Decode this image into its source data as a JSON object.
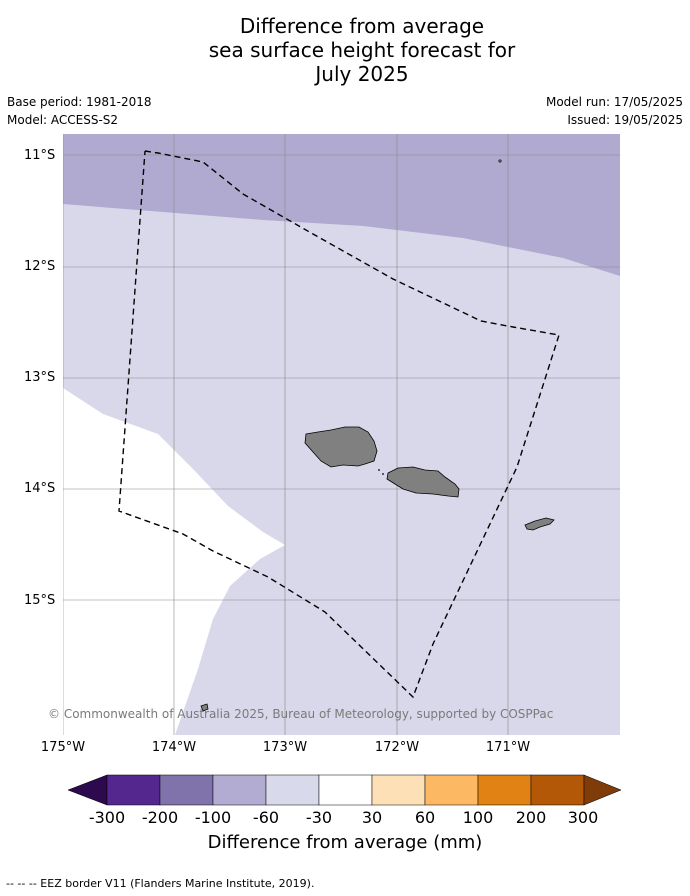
{
  "title": {
    "line1": "Difference from average",
    "line2": "sea surface height forecast for",
    "line3": "July 2025"
  },
  "meta": {
    "base_period": "Base period: 1981-2018",
    "model": "Model: ACCESS-S2",
    "model_run": "Model run: 17/05/2025",
    "issued": "Issued: 19/05/2025"
  },
  "map": {
    "lat_labels": [
      "11°S",
      "12°S",
      "13°S",
      "14°S",
      "15°S"
    ],
    "lon_labels": [
      "175°W",
      "174°W",
      "173°W",
      "172°W",
      "171°W"
    ],
    "copyright": "© Commonwealth of Australia 2025, Bureau of Meteorology, supported by COSPPac",
    "colors": {
      "band_neg_100_60": "#b0aad0",
      "band_neg_60_30": "#d8d8ea",
      "band_neg_30_30": "#ffffff",
      "land": "#808080",
      "grid": "#888888"
    }
  },
  "colorbar": {
    "title": "Difference from average (mm)",
    "ticks": [
      "-300",
      "-200",
      "-100",
      "-60",
      "-30",
      "30",
      "60",
      "100",
      "200",
      "300"
    ],
    "colors": [
      "#2d0a4e",
      "#54278f",
      "#8073ac",
      "#b2abd2",
      "#d8daeb",
      "#ffffff",
      "#fee0b6",
      "#fdb863",
      "#e08214",
      "#b35806",
      "#7f3b08"
    ]
  },
  "footnote": "-- -- -- EEZ border V11 (Flanders Marine Institute, 2019)."
}
